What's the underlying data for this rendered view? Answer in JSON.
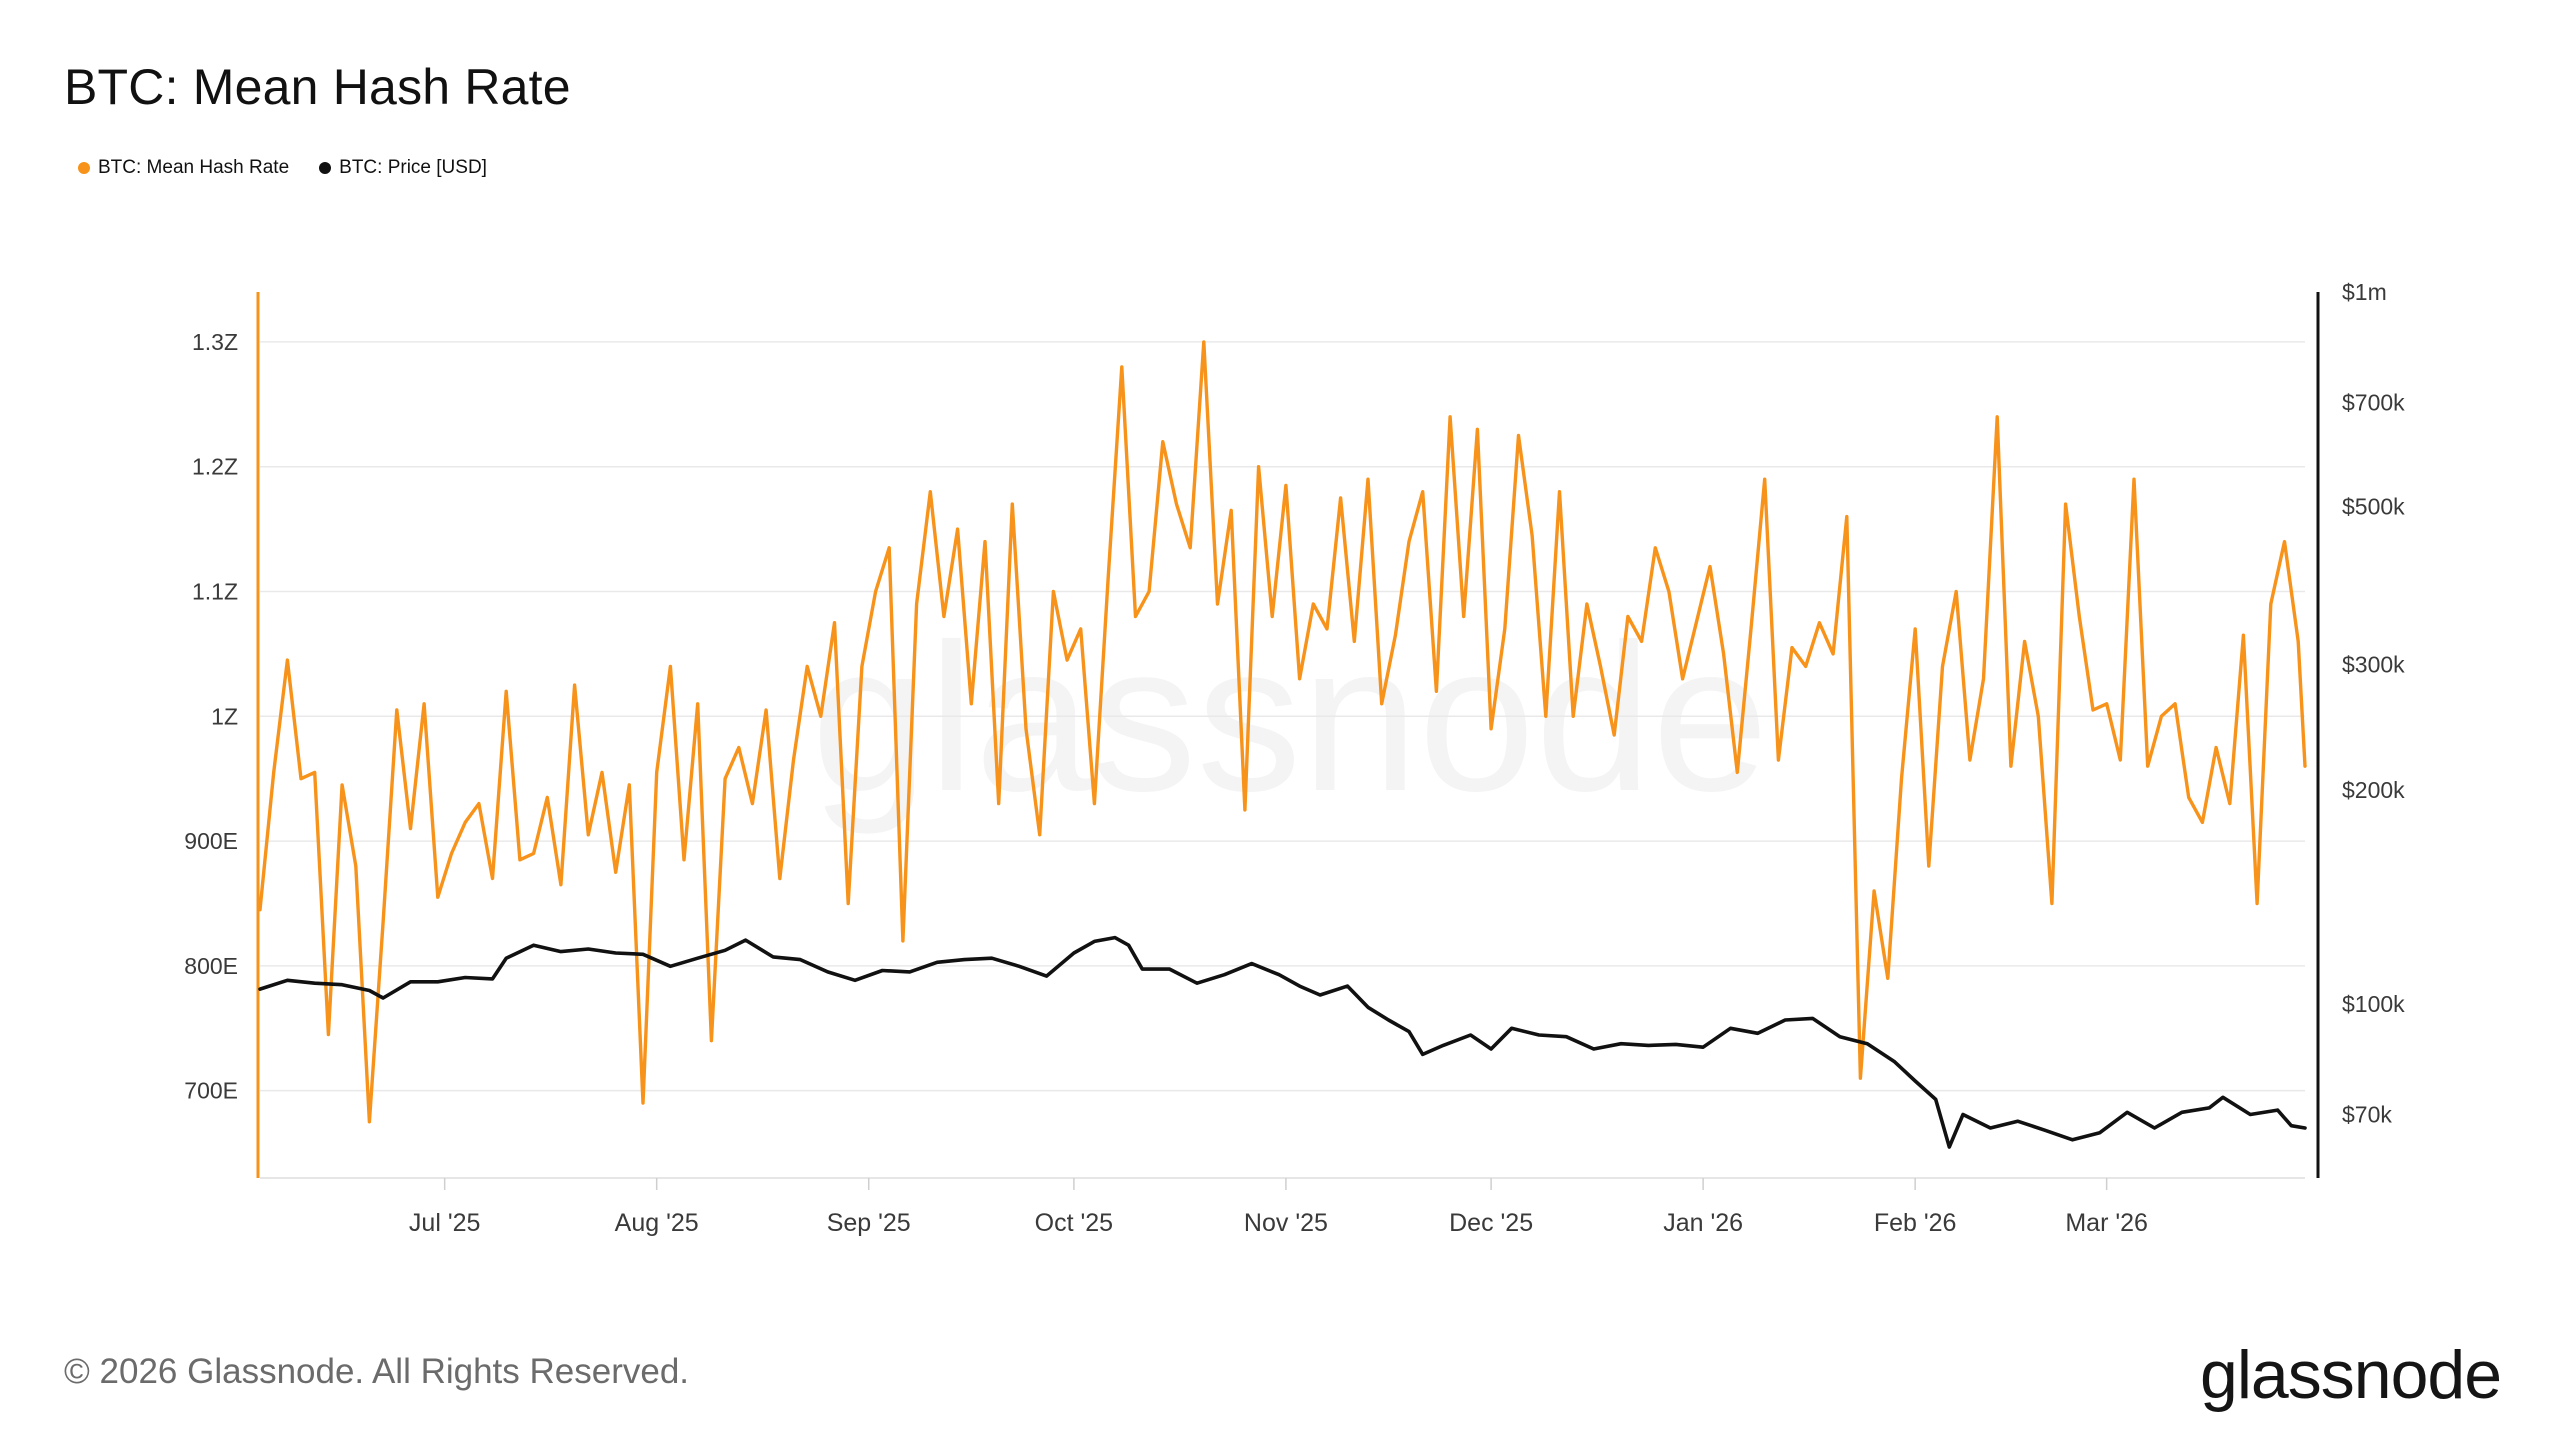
{
  "title": "BTC: Mean Hash Rate",
  "legend": [
    {
      "label": "BTC: Mean Hash Rate",
      "color": "#f7931a"
    },
    {
      "label": "BTC: Price [USD]",
      "color": "#111111"
    }
  ],
  "footer": "© 2026 Glassnode. All Rights Reserved.",
  "brand": "glassnode",
  "watermark": "glassnode",
  "chart_data": {
    "type": "line",
    "title": "BTC: Mean Hash Rate",
    "x_range": [
      "2025-06-04",
      "2026-03-30"
    ],
    "x_ticks": [
      {
        "date": "2025-07-01",
        "label": "Jul '25"
      },
      {
        "date": "2025-08-01",
        "label": "Aug '25"
      },
      {
        "date": "2025-09-01",
        "label": "Sep '25"
      },
      {
        "date": "2025-10-01",
        "label": "Oct '25"
      },
      {
        "date": "2025-11-01",
        "label": "Nov '25"
      },
      {
        "date": "2025-12-01",
        "label": "Dec '25"
      },
      {
        "date": "2026-01-01",
        "label": "Jan '26"
      },
      {
        "date": "2026-02-01",
        "label": "Feb '26"
      },
      {
        "date": "2026-03-01",
        "label": "Mar '26"
      }
    ],
    "y_left": {
      "scale": "linear",
      "unit": "H/s",
      "range": [
        630000000000000000000,
        1340000000000000000000
      ],
      "ticks": [
        {
          "value": 700000000000000000000,
          "label": "700E"
        },
        {
          "value": 800000000000000000000,
          "label": "800E"
        },
        {
          "value": 900000000000000000000,
          "label": "900E"
        },
        {
          "value": 1000000000000000000000,
          "label": "1Z"
        },
        {
          "value": 1100000000000000000000,
          "label": "1.1Z"
        },
        {
          "value": 1200000000000000000000,
          "label": "1.2Z"
        },
        {
          "value": 1300000000000000000000,
          "label": "1.3Z"
        }
      ]
    },
    "y_right": {
      "scale": "log",
      "unit": "USD",
      "range": [
        57000,
        1000000
      ],
      "ticks": [
        {
          "value": 70000,
          "label": "$70k"
        },
        {
          "value": 100000,
          "label": "$100k"
        },
        {
          "value": 200000,
          "label": "$200k"
        },
        {
          "value": 300000,
          "label": "$300k"
        },
        {
          "value": 500000,
          "label": "$500k"
        },
        {
          "value": 700000,
          "label": "$700k"
        },
        {
          "value": 1000000,
          "label": "$1m"
        }
      ]
    },
    "grid": true,
    "legend_position": "top-left",
    "series": [
      {
        "name": "BTC: Mean Hash Rate",
        "axis": "left",
        "color": "#f7931a",
        "points": [
          [
            "2025-06-04",
            845
          ],
          [
            "2025-06-06",
            955
          ],
          [
            "2025-06-08",
            1045
          ],
          [
            "2025-06-10",
            950
          ],
          [
            "2025-06-12",
            955
          ],
          [
            "2025-06-14",
            745
          ],
          [
            "2025-06-16",
            945
          ],
          [
            "2025-06-18",
            880
          ],
          [
            "2025-06-20",
            675
          ],
          [
            "2025-06-22",
            835
          ],
          [
            "2025-06-24",
            1005
          ],
          [
            "2025-06-26",
            910
          ],
          [
            "2025-06-28",
            1010
          ],
          [
            "2025-06-30",
            855
          ],
          [
            "2025-07-02",
            890
          ],
          [
            "2025-07-04",
            915
          ],
          [
            "2025-07-06",
            930
          ],
          [
            "2025-07-08",
            870
          ],
          [
            "2025-07-10",
            1020
          ],
          [
            "2025-07-12",
            885
          ],
          [
            "2025-07-14",
            890
          ],
          [
            "2025-07-16",
            935
          ],
          [
            "2025-07-18",
            865
          ],
          [
            "2025-07-20",
            1025
          ],
          [
            "2025-07-22",
            905
          ],
          [
            "2025-07-24",
            955
          ],
          [
            "2025-07-26",
            875
          ],
          [
            "2025-07-28",
            945
          ],
          [
            "2025-07-30",
            690
          ],
          [
            "2025-08-01",
            955
          ],
          [
            "2025-08-03",
            1040
          ],
          [
            "2025-08-05",
            885
          ],
          [
            "2025-08-07",
            1010
          ],
          [
            "2025-08-09",
            740
          ],
          [
            "2025-08-11",
            950
          ],
          [
            "2025-08-13",
            975
          ],
          [
            "2025-08-15",
            930
          ],
          [
            "2025-08-17",
            1005
          ],
          [
            "2025-08-19",
            870
          ],
          [
            "2025-08-21",
            965
          ],
          [
            "2025-08-23",
            1040
          ],
          [
            "2025-08-25",
            1000
          ],
          [
            "2025-08-27",
            1075
          ],
          [
            "2025-08-29",
            850
          ],
          [
            "2025-08-31",
            1040
          ],
          [
            "2025-09-02",
            1100
          ],
          [
            "2025-09-04",
            1135
          ],
          [
            "2025-09-06",
            820
          ],
          [
            "2025-09-08",
            1090
          ],
          [
            "2025-09-10",
            1180
          ],
          [
            "2025-09-12",
            1080
          ],
          [
            "2025-09-14",
            1150
          ],
          [
            "2025-09-16",
            1010
          ],
          [
            "2025-09-18",
            1140
          ],
          [
            "2025-09-20",
            930
          ],
          [
            "2025-09-22",
            1170
          ],
          [
            "2025-09-24",
            990
          ],
          [
            "2025-09-26",
            905
          ],
          [
            "2025-09-28",
            1100
          ],
          [
            "2025-09-30",
            1045
          ],
          [
            "2025-10-02",
            1070
          ],
          [
            "2025-10-04",
            930
          ],
          [
            "2025-10-06",
            1110
          ],
          [
            "2025-10-08",
            1280
          ],
          [
            "2025-10-10",
            1080
          ],
          [
            "2025-10-12",
            1100
          ],
          [
            "2025-10-14",
            1220
          ],
          [
            "2025-10-16",
            1170
          ],
          [
            "2025-10-18",
            1135
          ],
          [
            "2025-10-20",
            1300
          ],
          [
            "2025-10-22",
            1090
          ],
          [
            "2025-10-24",
            1165
          ],
          [
            "2025-10-26",
            925
          ],
          [
            "2025-10-28",
            1200
          ],
          [
            "2025-10-30",
            1080
          ],
          [
            "2025-11-01",
            1185
          ],
          [
            "2025-11-03",
            1030
          ],
          [
            "2025-11-05",
            1090
          ],
          [
            "2025-11-07",
            1070
          ],
          [
            "2025-11-09",
            1175
          ],
          [
            "2025-11-11",
            1060
          ],
          [
            "2025-11-13",
            1190
          ],
          [
            "2025-11-15",
            1010
          ],
          [
            "2025-11-17",
            1065
          ],
          [
            "2025-11-19",
            1140
          ],
          [
            "2025-11-21",
            1180
          ],
          [
            "2025-11-23",
            1020
          ],
          [
            "2025-11-25",
            1240
          ],
          [
            "2025-11-27",
            1080
          ],
          [
            "2025-11-29",
            1230
          ],
          [
            "2025-12-01",
            990
          ],
          [
            "2025-12-03",
            1070
          ],
          [
            "2025-12-05",
            1225
          ],
          [
            "2025-12-07",
            1145
          ],
          [
            "2025-12-09",
            1000
          ],
          [
            "2025-12-11",
            1180
          ],
          [
            "2025-12-13",
            1000
          ],
          [
            "2025-12-15",
            1090
          ],
          [
            "2025-12-17",
            1040
          ],
          [
            "2025-12-19",
            985
          ],
          [
            "2025-12-21",
            1080
          ],
          [
            "2025-12-23",
            1060
          ],
          [
            "2025-12-25",
            1135
          ],
          [
            "2025-12-27",
            1100
          ],
          [
            "2025-12-29",
            1030
          ],
          [
            "2025-12-31",
            1075
          ],
          [
            "2026-01-02",
            1120
          ],
          [
            "2026-01-04",
            1050
          ],
          [
            "2026-01-06",
            955
          ],
          [
            "2026-01-08",
            1070
          ],
          [
            "2026-01-10",
            1190
          ],
          [
            "2026-01-12",
            965
          ],
          [
            "2026-01-14",
            1055
          ],
          [
            "2026-01-16",
            1040
          ],
          [
            "2026-01-18",
            1075
          ],
          [
            "2026-01-20",
            1050
          ],
          [
            "2026-01-22",
            1160
          ],
          [
            "2026-01-24",
            710
          ],
          [
            "2026-01-26",
            860
          ],
          [
            "2026-01-28",
            790
          ],
          [
            "2026-01-30",
            950
          ],
          [
            "2026-02-01",
            1070
          ],
          [
            "2026-02-03",
            880
          ],
          [
            "2026-02-05",
            1040
          ],
          [
            "2026-02-07",
            1100
          ],
          [
            "2026-02-09",
            965
          ],
          [
            "2026-02-11",
            1030
          ],
          [
            "2026-02-13",
            1240
          ],
          [
            "2026-02-15",
            960
          ],
          [
            "2026-02-17",
            1060
          ],
          [
            "2026-02-19",
            1000
          ],
          [
            "2026-02-21",
            850
          ],
          [
            "2026-02-23",
            1170
          ],
          [
            "2026-02-25",
            1080
          ],
          [
            "2026-02-27",
            1005
          ],
          [
            "2026-03-01",
            1010
          ],
          [
            "2026-03-03",
            965
          ],
          [
            "2026-03-05",
            1190
          ],
          [
            "2026-03-07",
            960
          ],
          [
            "2026-03-09",
            1000
          ],
          [
            "2026-03-11",
            1010
          ],
          [
            "2026-03-13",
            935
          ],
          [
            "2026-03-15",
            915
          ],
          [
            "2026-03-17",
            975
          ],
          [
            "2026-03-19",
            930
          ],
          [
            "2026-03-21",
            1065
          ],
          [
            "2026-03-23",
            850
          ],
          [
            "2026-03-25",
            1090
          ],
          [
            "2026-03-27",
            1140
          ],
          [
            "2026-03-29",
            1060
          ],
          [
            "2026-03-30",
            960
          ]
        ]
      },
      {
        "name": "BTC: Price [USD]",
        "axis": "right",
        "color": "#111111",
        "points": [
          [
            "2025-06-04",
            105000
          ],
          [
            "2025-06-08",
            108000
          ],
          [
            "2025-06-12",
            107000
          ],
          [
            "2025-06-16",
            106500
          ],
          [
            "2025-06-20",
            104500
          ],
          [
            "2025-06-22",
            102000
          ],
          [
            "2025-06-26",
            107500
          ],
          [
            "2025-06-30",
            107500
          ],
          [
            "2025-07-04",
            109000
          ],
          [
            "2025-07-08",
            108500
          ],
          [
            "2025-07-10",
            116000
          ],
          [
            "2025-07-14",
            121000
          ],
          [
            "2025-07-18",
            118500
          ],
          [
            "2025-07-22",
            119500
          ],
          [
            "2025-07-26",
            118000
          ],
          [
            "2025-07-30",
            117500
          ],
          [
            "2025-08-03",
            113000
          ],
          [
            "2025-08-07",
            116000
          ],
          [
            "2025-08-11",
            119000
          ],
          [
            "2025-08-14",
            123000
          ],
          [
            "2025-08-18",
            116500
          ],
          [
            "2025-08-22",
            115500
          ],
          [
            "2025-08-26",
            111000
          ],
          [
            "2025-08-30",
            108000
          ],
          [
            "2025-09-03",
            111500
          ],
          [
            "2025-09-07",
            111000
          ],
          [
            "2025-09-11",
            114500
          ],
          [
            "2025-09-15",
            115500
          ],
          [
            "2025-09-19",
            116000
          ],
          [
            "2025-09-23",
            113000
          ],
          [
            "2025-09-27",
            109500
          ],
          [
            "2025-10-01",
            118000
          ],
          [
            "2025-10-04",
            122500
          ],
          [
            "2025-10-07",
            124000
          ],
          [
            "2025-10-09",
            121000
          ],
          [
            "2025-10-11",
            112000
          ],
          [
            "2025-10-15",
            112000
          ],
          [
            "2025-10-19",
            107000
          ],
          [
            "2025-10-23",
            110000
          ],
          [
            "2025-10-27",
            114000
          ],
          [
            "2025-10-31",
            110000
          ],
          [
            "2025-11-03",
            106000
          ],
          [
            "2025-11-06",
            103000
          ],
          [
            "2025-11-10",
            106000
          ],
          [
            "2025-11-13",
            99000
          ],
          [
            "2025-11-16",
            95000
          ],
          [
            "2025-11-19",
            91500
          ],
          [
            "2025-11-21",
            85000
          ],
          [
            "2025-11-24",
            87500
          ],
          [
            "2025-11-28",
            90500
          ],
          [
            "2025-12-01",
            86500
          ],
          [
            "2025-12-04",
            92500
          ],
          [
            "2025-12-08",
            90500
          ],
          [
            "2025-12-12",
            90000
          ],
          [
            "2025-12-16",
            86500
          ],
          [
            "2025-12-20",
            88000
          ],
          [
            "2025-12-24",
            87500
          ],
          [
            "2025-12-28",
            87800
          ],
          [
            "2026-01-01",
            87000
          ],
          [
            "2026-01-05",
            92500
          ],
          [
            "2026-01-09",
            91000
          ],
          [
            "2026-01-13",
            95000
          ],
          [
            "2026-01-17",
            95500
          ],
          [
            "2026-01-21",
            90000
          ],
          [
            "2026-01-25",
            88000
          ],
          [
            "2026-01-29",
            83000
          ],
          [
            "2026-02-01",
            78000
          ],
          [
            "2026-02-04",
            73500
          ],
          [
            "2026-02-06",
            63000
          ],
          [
            "2026-02-08",
            70000
          ],
          [
            "2026-02-12",
            67000
          ],
          [
            "2026-02-16",
            68500
          ],
          [
            "2026-02-20",
            66500
          ],
          [
            "2026-02-24",
            64500
          ],
          [
            "2026-02-28",
            66000
          ],
          [
            "2026-03-04",
            70500
          ],
          [
            "2026-03-08",
            67000
          ],
          [
            "2026-03-12",
            70500
          ],
          [
            "2026-03-16",
            71500
          ],
          [
            "2026-03-18",
            74000
          ],
          [
            "2026-03-22",
            70000
          ],
          [
            "2026-03-26",
            71000
          ],
          [
            "2026-03-28",
            67500
          ],
          [
            "2026-03-30",
            67000
          ]
        ]
      }
    ]
  }
}
